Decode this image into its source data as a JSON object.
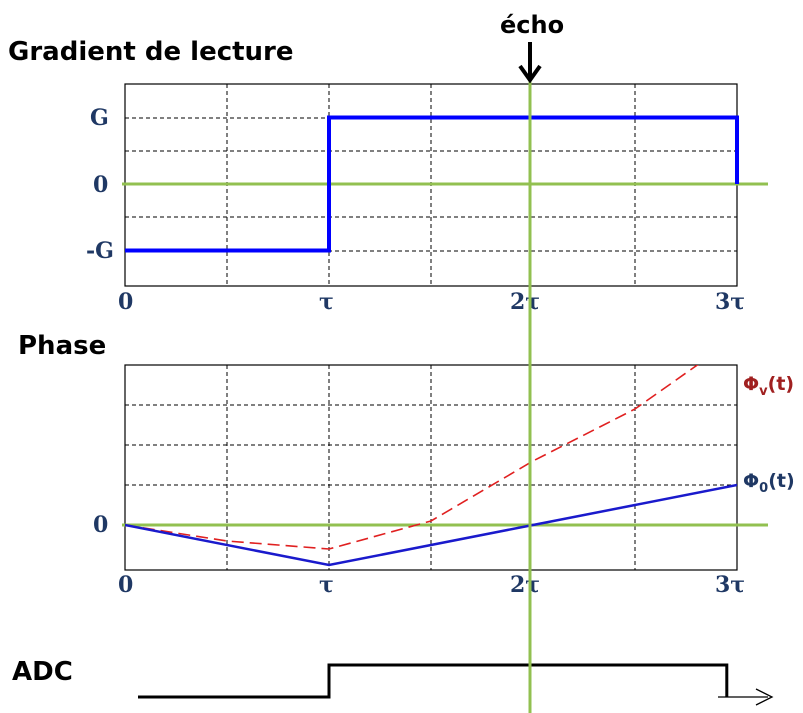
{
  "titles": {
    "gradient": "Gradient de lecture",
    "phase": "Phase",
    "adc": "ADC"
  },
  "echo_label": "écho",
  "x_ticks": [
    "0",
    "τ",
    "2τ",
    "3τ"
  ],
  "gradient_y_ticks": [
    "G",
    "0",
    "-G"
  ],
  "phase_y_ticks": [
    "0"
  ],
  "legend": {
    "phi_v": {
      "base": "Φ",
      "sub": "v",
      "tail": "(t)"
    },
    "phi_0": {
      "base": "Φ",
      "sub": "0",
      "tail": "(t)"
    }
  },
  "colors": {
    "gradient_line": "#0000ff",
    "phi_0": "#1a1acc",
    "phi_v": "#e02020",
    "zero_line": "#92c050",
    "echo_line": "#92c050",
    "adc_line": "#000000",
    "tick_text": "#1f3864",
    "grid": "#000000"
  },
  "chart_data": [
    {
      "type": "line",
      "title": "Gradient de lecture",
      "x_unit": "τ",
      "xlim": [
        0,
        3
      ],
      "ylim": [
        -2,
        2
      ],
      "grid": true,
      "series": [
        {
          "x": [
            0,
            1,
            1,
            3,
            3
          ],
          "y": [
            -1,
            -1,
            1,
            1,
            0
          ]
        }
      ]
    },
    {
      "type": "line",
      "title": "Phase",
      "x_unit": "τ",
      "xlim": [
        0,
        3
      ],
      "ylim": [
        -1,
        5
      ],
      "grid": true,
      "series": [
        {
          "name": "Φ0(t)",
          "x": [
            0,
            1,
            2,
            3
          ],
          "y": [
            0,
            -1,
            0,
            1
          ]
        },
        {
          "name": "Φv(t)",
          "x": [
            0,
            0.5,
            1,
            1.5,
            2,
            2.5,
            3
          ],
          "y": [
            0,
            -0.4,
            -0.6,
            0.1,
            1.6,
            2.9,
            4.7
          ]
        }
      ]
    },
    {
      "type": "line",
      "title": "ADC",
      "xlim": [
        0,
        3
      ],
      "series": [
        {
          "x": [
            0,
            1,
            1,
            2.95,
            2.95
          ],
          "y": [
            0,
            0,
            1,
            1,
            0
          ]
        }
      ]
    }
  ]
}
